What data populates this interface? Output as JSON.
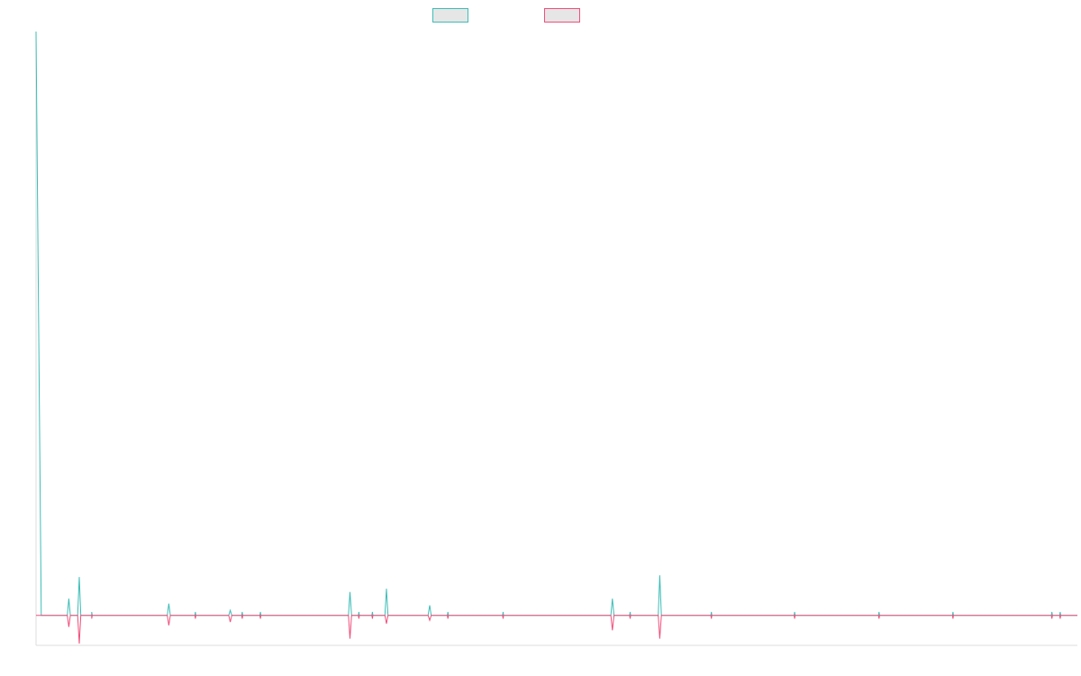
{
  "colors": {
    "series_a": "#3dbdb7",
    "series_b": "#f04f7b",
    "axis": "#dddddd",
    "legend_fill": "#e6e6e6"
  },
  "chart_data": {
    "type": "line",
    "title": "",
    "xlabel": "",
    "ylabel": "",
    "legend_position": "top-center",
    "grid": false,
    "legend": [
      {
        "name": "",
        "color": "#3dbdb7"
      },
      {
        "name": "",
        "color": "#f04f7b"
      }
    ],
    "x_range": [
      0,
      200
    ],
    "y_range": [
      -1.8,
      35
    ],
    "series": [
      {
        "name": "",
        "color": "#3dbdb7",
        "points": [
          [
            0,
            35
          ],
          [
            1,
            0
          ],
          [
            6,
            0
          ],
          [
            6.3,
            1
          ],
          [
            6.6,
            0
          ],
          [
            8,
            0
          ],
          [
            8.3,
            2.3
          ],
          [
            8.6,
            0
          ],
          [
            10.7,
            0
          ],
          [
            10.7,
            0.2
          ],
          [
            10.8,
            0
          ],
          [
            25.2,
            0
          ],
          [
            25.5,
            0.7
          ],
          [
            25.8,
            0
          ],
          [
            30.5,
            0
          ],
          [
            30.6,
            0.2
          ],
          [
            30.7,
            0
          ],
          [
            37,
            0
          ],
          [
            37.3,
            0.3
          ],
          [
            37.6,
            0
          ],
          [
            39.5,
            0
          ],
          [
            39.6,
            0.2
          ],
          [
            39.7,
            0
          ],
          [
            43,
            0
          ],
          [
            43.1,
            0.2
          ],
          [
            43.2,
            0
          ],
          [
            60,
            0
          ],
          [
            60.3,
            1.4
          ],
          [
            60.6,
            0
          ],
          [
            61.9,
            0
          ],
          [
            62,
            0.2
          ],
          [
            62.1,
            0
          ],
          [
            64.5,
            0
          ],
          [
            64.6,
            0.2
          ],
          [
            64.7,
            0
          ],
          [
            67,
            0
          ],
          [
            67.3,
            1.6
          ],
          [
            67.6,
            0
          ],
          [
            75.3,
            0
          ],
          [
            75.6,
            0.6
          ],
          [
            75.9,
            0
          ],
          [
            79,
            0
          ],
          [
            79.1,
            0.2
          ],
          [
            79.2,
            0
          ],
          [
            89.6,
            0
          ],
          [
            89.7,
            0.2
          ],
          [
            89.8,
            0
          ],
          [
            110.4,
            0
          ],
          [
            110.7,
            1.0
          ],
          [
            111,
            0
          ],
          [
            114,
            0
          ],
          [
            114.1,
            0.2
          ],
          [
            114.2,
            0
          ],
          [
            119.5,
            0
          ],
          [
            119.8,
            2.4
          ],
          [
            120.1,
            0
          ],
          [
            129.6,
            0
          ],
          [
            129.7,
            0.2
          ],
          [
            129.8,
            0
          ],
          [
            145.6,
            0
          ],
          [
            145.7,
            0.2
          ],
          [
            145.8,
            0
          ],
          [
            161.8,
            0
          ],
          [
            161.9,
            0.2
          ],
          [
            162,
            0
          ],
          [
            176,
            0
          ],
          [
            176.1,
            0.2
          ],
          [
            176.2,
            0
          ],
          [
            195,
            0
          ],
          [
            195.1,
            0.2
          ],
          [
            195.2,
            0
          ],
          [
            196.6,
            0
          ],
          [
            196.7,
            0.2
          ],
          [
            196.8,
            0
          ],
          [
            200,
            0
          ]
        ]
      },
      {
        "name": "",
        "color": "#f04f7b",
        "points": [
          [
            0,
            0
          ],
          [
            6,
            0
          ],
          [
            6.3,
            -0.7
          ],
          [
            6.6,
            0
          ],
          [
            8,
            0
          ],
          [
            8.3,
            -1.7
          ],
          [
            8.6,
            0
          ],
          [
            10.7,
            0
          ],
          [
            10.7,
            -0.2
          ],
          [
            10.8,
            0
          ],
          [
            25.2,
            0
          ],
          [
            25.5,
            -0.6
          ],
          [
            25.8,
            0
          ],
          [
            30.5,
            0
          ],
          [
            30.6,
            -0.2
          ],
          [
            30.7,
            0
          ],
          [
            37,
            0
          ],
          [
            37.3,
            -0.4
          ],
          [
            37.6,
            0
          ],
          [
            39.5,
            0
          ],
          [
            39.6,
            -0.2
          ],
          [
            39.7,
            0
          ],
          [
            43,
            0
          ],
          [
            43.1,
            -0.2
          ],
          [
            43.2,
            0
          ],
          [
            60,
            0
          ],
          [
            60.3,
            -1.4
          ],
          [
            60.6,
            0
          ],
          [
            61.9,
            0
          ],
          [
            62,
            -0.2
          ],
          [
            62.1,
            0
          ],
          [
            64.5,
            0
          ],
          [
            64.6,
            -0.2
          ],
          [
            64.7,
            0
          ],
          [
            67,
            0
          ],
          [
            67.3,
            -0.5
          ],
          [
            67.6,
            0
          ],
          [
            75.3,
            0
          ],
          [
            75.6,
            -0.3
          ],
          [
            75.9,
            0
          ],
          [
            79,
            0
          ],
          [
            79.1,
            -0.2
          ],
          [
            79.2,
            0
          ],
          [
            89.6,
            0
          ],
          [
            89.7,
            -0.2
          ],
          [
            89.8,
            0
          ],
          [
            110.4,
            0
          ],
          [
            110.7,
            -0.9
          ],
          [
            111,
            0
          ],
          [
            114,
            0
          ],
          [
            114.1,
            -0.2
          ],
          [
            114.2,
            0
          ],
          [
            119.5,
            0
          ],
          [
            119.8,
            -1.4
          ],
          [
            120.1,
            0
          ],
          [
            129.6,
            0
          ],
          [
            129.7,
            -0.2
          ],
          [
            129.8,
            0
          ],
          [
            145.6,
            0
          ],
          [
            145.7,
            -0.2
          ],
          [
            145.8,
            0
          ],
          [
            161.8,
            0
          ],
          [
            161.9,
            -0.2
          ],
          [
            162,
            0
          ],
          [
            176,
            0
          ],
          [
            176.1,
            -0.2
          ],
          [
            176.2,
            0
          ],
          [
            195,
            0
          ],
          [
            195.1,
            -0.2
          ],
          [
            195.2,
            0
          ],
          [
            196.6,
            0
          ],
          [
            196.7,
            -0.2
          ],
          [
            196.8,
            0
          ],
          [
            200,
            0
          ]
        ]
      }
    ]
  }
}
